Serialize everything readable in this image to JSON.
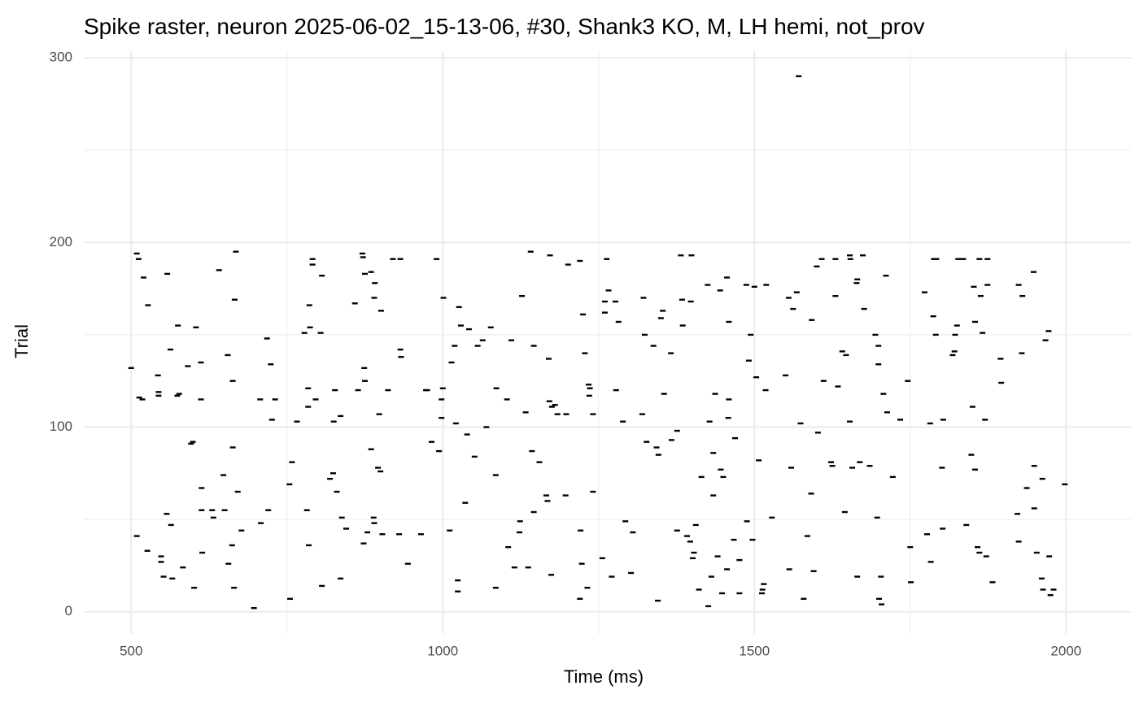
{
  "chart_data": {
    "type": "scatter",
    "title": "Spike raster, neuron 2025-06-02_15-13-06, #30, Shank3 KO, M, LH hemi, not_prov",
    "x_label": "Time (ms)",
    "y_label": "Trial",
    "xlim": [
      424,
      2104
    ],
    "ylim": [
      -12,
      304
    ],
    "xticks": [
      500,
      1000,
      1500,
      2000
    ],
    "yticks": [
      0,
      100,
      200,
      300
    ],
    "x_minor_ticks": [
      750,
      1250,
      1750
    ],
    "y_minor_ticks": [
      50,
      150,
      250
    ],
    "grid": true,
    "color": "#000000",
    "x": [
      500,
      509,
      512,
      520,
      527,
      513,
      518,
      509,
      526,
      543,
      544,
      544,
      548,
      548,
      552,
      557,
      558,
      563,
      564,
      566,
      574,
      575,
      577,
      583,
      591,
      596,
      599,
      601,
      604,
      612,
      612,
      613,
      613,
      614,
      630,
      632,
      641,
      648,
      650,
      655,
      656,
      662,
      663,
      663,
      665,
      666,
      668,
      671,
      677,
      697,
      707,
      708,
      718,
      720,
      724,
      726,
      731,
      755,
      754,
      758,
      766,
      778,
      782,
      784,
      784,
      785,
      786,
      787,
      791,
      791,
      796,
      804,
      806,
      806,
      819,
      825,
      824,
      827,
      830,
      836,
      836,
      838,
      845,
      859,
      864,
      871,
      872,
      873,
      874,
      875,
      875,
      879,
      885,
      885,
      889,
      890,
      890,
      891,
      896,
      898,
      900,
      901,
      903,
      912,
      930,
      920,
      932,
      932,
      933,
      944,
      965,
      973,
      975,
      982,
      990,
      994,
      998,
      998,
      1000,
      1001,
      1011,
      1014,
      1019,
      1021,
      1024,
      1024,
      1026,
      1029,
      1036,
      1039,
      1042,
      1051,
      1056,
      1064,
      1070,
      1077,
      1085,
      1086,
      1085,
      1103,
      1105,
      1110,
      1115,
      1123,
      1124,
      1127,
      1133,
      1137,
      1141,
      1143,
      1146,
      1146,
      1155,
      1166,
      1168,
      1170,
      1171,
      1172,
      1174,
      1175,
      1180,
      1184,
      1197,
      1198,
      1201,
      1220,
      1220,
      1221,
      1223,
      1225,
      1228,
      1232,
      1234,
      1235,
      1236,
      1241,
      1241,
      1256,
      1260,
      1260,
      1263,
      1266,
      1271,
      1277,
      1282,
      1278,
      1289,
      1293,
      1302,
      1305,
      1320,
      1322,
      1324,
      1327,
      1338,
      1343,
      1345,
      1346,
      1350,
      1353,
      1355,
      1366,
      1367,
      1376,
      1376,
      1382,
      1385,
      1384,
      1392,
      1397,
      1399,
      1398,
      1401,
      1403,
      1406,
      1411,
      1415,
      1425,
      1426,
      1428,
      1431,
      1434,
      1434,
      1437,
      1441,
      1445,
      1446,
      1448,
      1450,
      1456,
      1456,
      1458,
      1459,
      1459,
      1467,
      1469,
      1476,
      1476,
      1487,
      1488,
      1491,
      1494,
      1497,
      1500,
      1503,
      1507,
      1512,
      1513,
      1515,
      1518,
      1519,
      1528,
      1550,
      1555,
      1556,
      1559,
      1562,
      1568,
      1571,
      1574,
      1579,
      1585,
      1592,
      1591,
      1595,
      1602,
      1600,
      1608,
      1611,
      1623,
      1625,
      1630,
      1630,
      1634,
      1641,
      1645,
      1647,
      1654,
      1653,
      1653,
      1657,
      1664,
      1665,
      1665,
      1669,
      1676,
      1674,
      1685,
      1694,
      1697,
      1699,
      1699,
      1700,
      1704,
      1703,
      1707,
      1711,
      1713,
      1722,
      1734,
      1746,
      1750,
      1751,
      1773,
      1777,
      1782,
      1783,
      1787,
      1788,
      1791,
      1792,
      1801,
      1802,
      1803,
      1818,
      1821,
      1822,
      1825,
      1827,
      1835,
      1840,
      1848,
      1850,
      1852,
      1854,
      1854,
      1858,
      1861,
      1861,
      1863,
      1866,
      1870,
      1872,
      1874,
      1874,
      1882,
      1895,
      1896,
      1922,
      1924,
      1924,
      1929,
      1930,
      1937,
      1948,
      1949,
      1949,
      1953,
      1961,
      1962,
      1963,
      1967,
      1972,
      1973,
      1975,
      1980,
      1998
    ],
    "values": [
      132,
      194,
      191,
      181,
      166,
      116,
      115,
      41,
      33,
      128,
      119,
      117,
      30,
      27,
      19,
      53,
      183,
      142,
      47,
      18,
      117,
      155,
      118,
      24,
      133,
      91,
      92,
      13,
      154,
      135,
      115,
      67,
      55,
      32,
      55,
      51,
      185,
      74,
      55,
      139,
      26,
      36,
      125,
      89,
      13,
      169,
      195,
      65,
      44,
      2,
      115,
      48,
      148,
      55,
      134,
      104,
      115,
      7,
      69,
      81,
      103,
      151,
      55,
      121,
      111,
      36,
      166,
      154,
      191,
      188,
      115,
      151,
      182,
      14,
      72,
      103,
      75,
      120,
      65,
      18,
      106,
      51,
      45,
      167,
      120,
      194,
      192,
      37,
      132,
      183,
      125,
      43,
      184,
      88,
      51,
      48,
      170,
      178,
      78,
      107,
      76,
      163,
      42,
      120,
      42,
      191,
      191,
      142,
      138,
      26,
      42,
      120,
      120,
      92,
      191,
      87,
      105,
      115,
      121,
      170,
      44,
      135,
      144,
      102,
      17,
      11,
      165,
      155,
      59,
      96,
      153,
      84,
      144,
      147,
      100,
      154,
      74,
      121,
      13,
      115,
      35,
      147,
      24,
      43,
      49,
      171,
      108,
      24,
      195,
      87,
      144,
      54,
      81,
      63,
      60,
      137,
      114,
      193,
      20,
      111,
      112,
      107,
      63,
      107,
      188,
      190,
      7,
      44,
      26,
      161,
      140,
      13,
      123,
      117,
      121,
      65,
      107,
      29,
      168,
      162,
      191,
      174,
      19,
      168,
      157,
      120,
      103,
      49,
      21,
      43,
      107,
      170,
      150,
      92,
      144,
      89,
      6,
      85,
      159,
      163,
      118,
      140,
      93,
      98,
      44,
      193,
      155,
      169,
      41,
      38,
      193,
      168,
      29,
      32,
      47,
      12,
      73,
      177,
      3,
      103,
      19,
      63,
      86,
      118,
      30,
      174,
      77,
      10,
      73,
      181,
      23,
      105,
      157,
      115,
      39,
      94,
      28,
      10,
      177,
      49,
      136,
      150,
      39,
      176,
      127,
      82,
      10,
      12,
      15,
      120,
      177,
      51,
      128,
      170,
      23,
      78,
      164,
      173,
      290,
      102,
      7,
      41,
      158,
      64,
      22,
      97,
      187,
      191,
      125,
      81,
      79,
      191,
      171,
      122,
      141,
      54,
      139,
      191,
      193,
      103,
      78,
      178,
      180,
      19,
      81,
      164,
      193,
      79,
      150,
      51,
      144,
      134,
      7,
      4,
      19,
      118,
      182,
      108,
      73,
      104,
      125,
      35,
      16,
      173,
      42,
      102,
      27,
      160,
      191,
      150,
      191,
      78,
      45,
      104,
      139,
      141,
      150,
      155,
      191,
      191,
      47,
      85,
      111,
      176,
      77,
      157,
      35,
      32,
      191,
      171,
      151,
      104,
      30,
      191,
      177,
      16,
      137,
      124,
      53,
      38,
      177,
      140,
      171,
      67,
      184,
      79,
      56,
      32,
      18,
      72,
      12,
      147,
      152,
      30,
      9,
      12,
      69
    ]
  }
}
